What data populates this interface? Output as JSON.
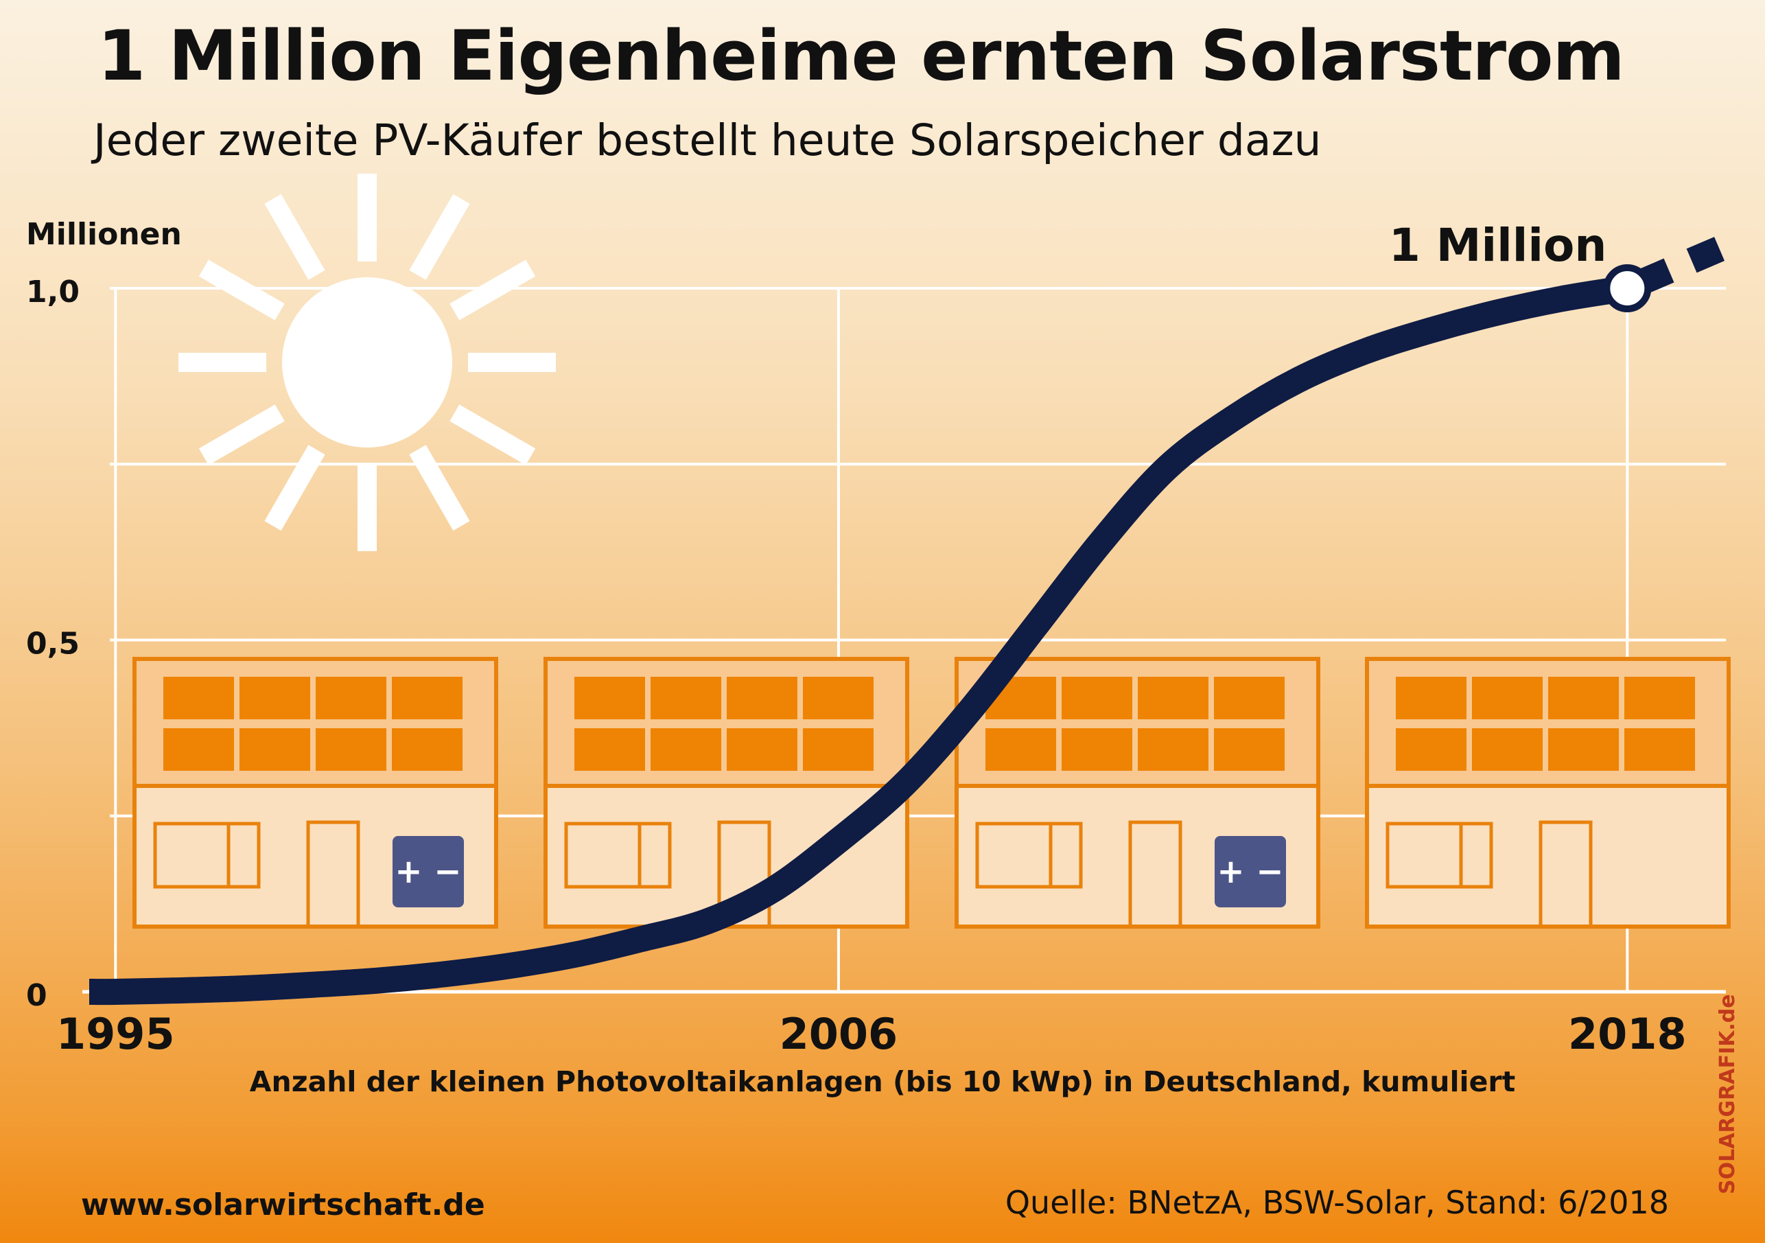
{
  "header": {
    "title": "1 Million Eigenheime ernten Solarstrom",
    "subtitle": "Jeder zweite PV-Käufer bestellt heute Solarspeicher dazu"
  },
  "footer": {
    "website": "www.solarwirtschaft.de",
    "source": "Quelle: BNetzA, BSW-Solar, Stand: 6/2018",
    "credit": "SOLARGRAFIK.de"
  },
  "illustrations": {
    "battery_symbol": "+ −",
    "icons": [
      "sun-icon",
      "house-icon",
      "solar-panel-icon",
      "battery-icon"
    ]
  },
  "colors": {
    "line": "#0f1c44",
    "grid": "#ffffff",
    "house_outline": "#e8820c",
    "house_fill": "#fbe0c0",
    "panel": "#ef8304",
    "battery": "#4c5587",
    "credit": "#c0391b"
  },
  "chart_data": {
    "type": "line",
    "title": "1 Million Eigenheime ernten Solarstrom",
    "ylabel": "Millionen",
    "xlabel": "Anzahl der kleinen Photovoltaikanlagen (bis 10 kWp) in Deutschland, kumuliert",
    "xlim": [
      1994.6,
      2019.5
    ],
    "ylim": [
      0,
      1.0
    ],
    "x_ticks": [
      1995,
      2006,
      2018
    ],
    "x_tick_labels": [
      "1995",
      "2006",
      "2018"
    ],
    "y_ticks": [
      0,
      0.5,
      1.0
    ],
    "y_tick_labels": [
      "0",
      "0,5",
      "1,0"
    ],
    "y_gridlines": [
      0,
      0.25,
      0.5,
      0.75,
      1.0
    ],
    "grid": true,
    "series": [
      {
        "name": "Kumulierte Anzahl kleiner PV-Anlagen",
        "x": [
          1994.6,
          1995,
          1996,
          1997,
          1998,
          1999,
          2000,
          2001,
          2002,
          2003,
          2004,
          2005,
          2006,
          2007,
          2008,
          2009,
          2010,
          2011,
          2012,
          2013,
          2014,
          2015,
          2016,
          2017,
          2018
        ],
        "values": [
          0.0,
          0.0,
          0.002,
          0.005,
          0.01,
          0.016,
          0.025,
          0.037,
          0.053,
          0.075,
          0.1,
          0.145,
          0.215,
          0.295,
          0.4,
          0.52,
          0.64,
          0.745,
          0.815,
          0.87,
          0.91,
          0.94,
          0.965,
          0.985,
          1.0
        ],
        "projection": {
          "x": [
            2018,
            2019.5
          ],
          "values": [
            1.0,
            1.06
          ]
        }
      }
    ],
    "annotations": [
      {
        "text": "1 Million",
        "x": 2018,
        "y": 1.0
      }
    ]
  }
}
